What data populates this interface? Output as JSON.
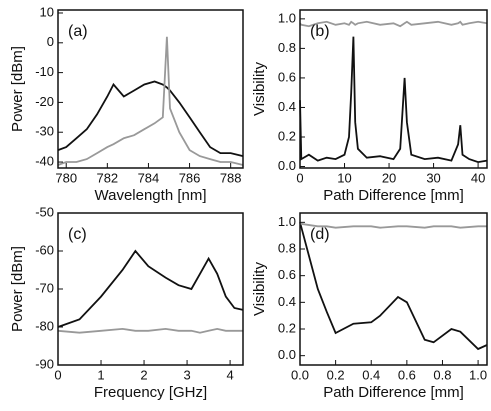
{
  "chart_data": [
    {
      "type": "line",
      "label": "(a)",
      "xlabel": "Wavelength [nm]",
      "ylabel": "Power [dBm]",
      "x": [
        779.6,
        780,
        780.5,
        781,
        781.5,
        782,
        782.3,
        782.8,
        783.3,
        783.8,
        784.3,
        784.7,
        784.9,
        785.05,
        785.5,
        786,
        786.5,
        787,
        787.5,
        788,
        788.6
      ],
      "series": [
        {
          "color": "#111111",
          "values": [
            -36,
            -35,
            -32,
            -29,
            -24,
            -18,
            -14,
            -18,
            -16,
            -14,
            -13,
            -14,
            -15,
            -16,
            -20,
            -25,
            -30,
            -35,
            -37,
            -37,
            -38
          ]
        },
        {
          "color": "#999999",
          "values": [
            -41,
            -40,
            -40,
            -39,
            -37,
            -35,
            -34,
            -32,
            -31,
            -29,
            -27,
            -25,
            2,
            -22,
            -30,
            -36,
            -38,
            -39,
            -40,
            -40,
            -41
          ]
        }
      ],
      "xlim": [
        779.6,
        788.6
      ],
      "xticks": [
        780,
        782,
        784,
        786,
        788
      ],
      "ylim": [
        -42,
        11
      ],
      "yticks": [
        10,
        0,
        -10,
        -20,
        -30,
        -40
      ]
    },
    {
      "type": "line",
      "label": "(b)",
      "xlabel": "Path Difference [mm]",
      "ylabel": "Visibility",
      "x": [
        0,
        0.3,
        2,
        4,
        6,
        8,
        10,
        11,
        11.5,
        12,
        12.4,
        13,
        15,
        18,
        21,
        22.5,
        23.5,
        24,
        25,
        28,
        31,
        34,
        35.5,
        36,
        36.5,
        38,
        40,
        42
      ],
      "series": [
        {
          "color": "#111111",
          "values": [
            0.45,
            0.05,
            0.08,
            0.04,
            0.06,
            0.05,
            0.08,
            0.2,
            0.5,
            0.88,
            0.3,
            0.12,
            0.06,
            0.07,
            0.05,
            0.12,
            0.6,
            0.3,
            0.08,
            0.05,
            0.06,
            0.04,
            0.15,
            0.28,
            0.08,
            0.05,
            0.03,
            0.04
          ]
        },
        {
          "color": "#999999",
          "values": [
            0.97,
            0.96,
            0.95,
            0.97,
            0.98,
            0.96,
            0.97,
            0.96,
            0.98,
            0.97,
            0.96,
            0.97,
            0.98,
            0.96,
            0.97,
            0.95,
            0.97,
            0.98,
            0.96,
            0.97,
            0.98,
            0.96,
            0.97,
            0.98,
            0.96,
            0.97,
            0.98,
            0.97
          ]
        }
      ],
      "xlim": [
        0,
        42
      ],
      "xticks": [
        0,
        10,
        20,
        30,
        40
      ],
      "ylim": [
        -0.01,
        1.06
      ],
      "yticks": [
        {
          "value": 0,
          "label": "0.0"
        },
        {
          "value": 0.2,
          "label": "0.2"
        },
        {
          "value": 0.4,
          "label": "0.4"
        },
        {
          "value": 0.6,
          "label": "0.6"
        },
        {
          "value": 0.8,
          "label": "0.8"
        },
        {
          "value": 1,
          "label": "1.0"
        }
      ]
    },
    {
      "type": "line",
      "label": "(c)",
      "xlabel": "Frequency [GHz]",
      "ylabel": "Power [dBm]",
      "x": [
        0,
        0.5,
        1,
        1.5,
        1.8,
        2.1,
        2.5,
        2.8,
        3.1,
        3.3,
        3.5,
        3.7,
        3.9,
        4.1,
        4.3
      ],
      "series": [
        {
          "color": "#111111",
          "values": [
            -80,
            -78,
            -72,
            -65,
            -60,
            -64,
            -67,
            -69,
            -70,
            -66,
            -62,
            -66,
            -72,
            -75,
            -75.5
          ]
        },
        {
          "color": "#999999",
          "values": [
            -81,
            -81.5,
            -81,
            -80.5,
            -81,
            -81,
            -80.5,
            -81,
            -81,
            -81.5,
            -81,
            -80.5,
            -81,
            -81,
            -81
          ]
        }
      ],
      "xlim": [
        0,
        4.3
      ],
      "xticks": [
        0,
        1,
        2,
        3,
        4
      ],
      "ylim": [
        -90,
        -50
      ],
      "yticks": [
        -50,
        -60,
        -70,
        -80,
        -90
      ]
    },
    {
      "type": "line",
      "label": "(d)",
      "xlabel": "Path Difference [mm]",
      "ylabel": "Visibility",
      "x": [
        0,
        0.1,
        0.15,
        0.2,
        0.3,
        0.4,
        0.45,
        0.55,
        0.6,
        0.7,
        0.75,
        0.85,
        0.9,
        1.0,
        1.05
      ],
      "series": [
        {
          "color": "#111111",
          "values": [
            1.0,
            0.5,
            0.33,
            0.17,
            0.24,
            0.25,
            0.3,
            0.44,
            0.4,
            0.12,
            0.1,
            0.2,
            0.18,
            0.05,
            0.08
          ]
        },
        {
          "color": "#999999",
          "values": [
            0.99,
            0.97,
            0.97,
            0.96,
            0.97,
            0.97,
            0.96,
            0.97,
            0.97,
            0.96,
            0.97,
            0.97,
            0.96,
            0.97,
            0.97
          ]
        }
      ],
      "xlim": [
        0,
        1.05
      ],
      "xticks": [
        {
          "value": 0,
          "label": "0.0"
        },
        {
          "value": 0.2,
          "label": "0.2"
        },
        {
          "value": 0.4,
          "label": "0.4"
        },
        {
          "value": 0.6,
          "label": "0.6"
        },
        {
          "value": 0.8,
          "label": "0.8"
        },
        {
          "value": 1,
          "label": "1.0"
        }
      ],
      "ylim": [
        -0.07,
        1.07
      ],
      "yticks": [
        {
          "value": 0,
          "label": "0.0"
        },
        {
          "value": 0.2,
          "label": "0.2"
        },
        {
          "value": 0.4,
          "label": "0.4"
        },
        {
          "value": 0.6,
          "label": "0.6"
        },
        {
          "value": 0.8,
          "label": "0.8"
        },
        {
          "value": 1,
          "label": "1.0"
        }
      ]
    }
  ]
}
